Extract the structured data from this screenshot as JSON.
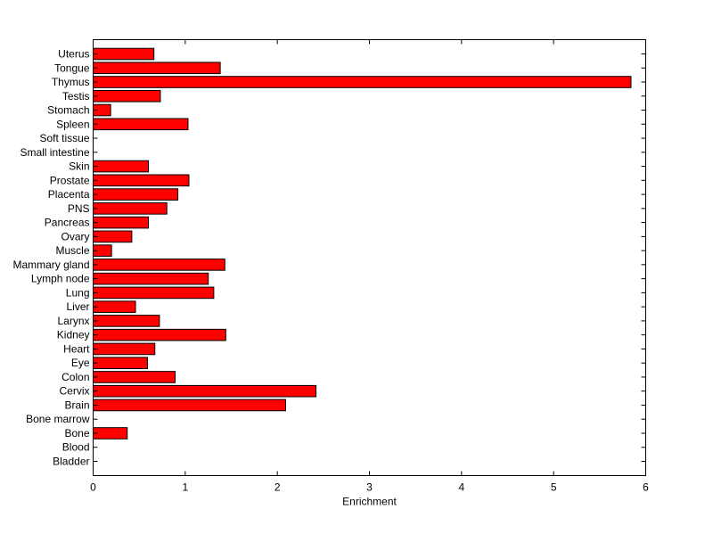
{
  "chart_data": {
    "type": "bar",
    "orientation": "horizontal",
    "title": "",
    "xlabel": "Enrichment",
    "ylabel": "",
    "xlim": [
      0,
      6
    ],
    "xticks": [
      0,
      1,
      2,
      3,
      4,
      5,
      6
    ],
    "grid": false,
    "bar_color": "#ff0000",
    "bar_edge_color": "#000000",
    "categories": [
      "Uterus",
      "Tongue",
      "Thymus",
      "Testis",
      "Stomach",
      "Spleen",
      "Soft tissue",
      "Small intestine",
      "Skin",
      "Prostate",
      "Placenta",
      "PNS",
      "Pancreas",
      "Ovary",
      "Muscle",
      "Mammary gland",
      "Lymph node",
      "Lung",
      "Liver",
      "Larynx",
      "Kidney",
      "Heart",
      "Eye",
      "Colon",
      "Cervix",
      "Brain",
      "Bone marrow",
      "Bone",
      "Blood",
      "Bladder"
    ],
    "values": [
      0.66,
      1.38,
      5.84,
      0.73,
      0.19,
      1.03,
      0,
      0,
      0.6,
      1.04,
      0.92,
      0.8,
      0.6,
      0.42,
      0.2,
      1.43,
      1.25,
      1.31,
      0.46,
      0.72,
      1.44,
      0.67,
      0.59,
      0.89,
      2.42,
      2.09,
      0,
      0.37,
      0,
      0
    ]
  }
}
